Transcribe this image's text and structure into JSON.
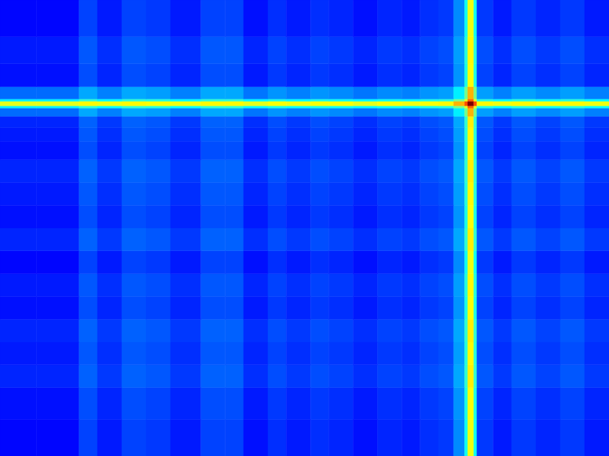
{
  "chart_data": {
    "type": "heatmap",
    "color": "jet",
    "tick_labels": false,
    "xlim": [
      0,
      100
    ],
    "ylim": [
      0,
      100
    ],
    "color_range": [
      0,
      1
    ],
    "x_edges": [
      0,
      6,
      13,
      16,
      20,
      24,
      28,
      33,
      37,
      40,
      44,
      47,
      51,
      54,
      58,
      62,
      66,
      69,
      72,
      74.5,
      76.3,
      76.8,
      77.8,
      78.3,
      81,
      84,
      88,
      92,
      96,
      100
    ],
    "y_edges": [
      0,
      8,
      15,
      20,
      25,
      30,
      35,
      40,
      45,
      50,
      55,
      60,
      65,
      69,
      72,
      74.5,
      76.3,
      76.8,
      77.8,
      78.3,
      81,
      86,
      92,
      100
    ],
    "cells": [
      [
        0.13,
        0.13,
        0.19,
        0.15,
        0.19,
        0.18,
        0.15,
        0.19,
        0.19,
        0.14,
        0.17,
        0.15,
        0.17,
        0.16,
        0.14,
        0.16,
        0.15,
        0.17,
        0.18,
        0.26,
        0.39,
        0.61,
        0.39,
        0.18,
        0.15,
        0.18,
        0.16,
        0.18,
        0.15
      ],
      [
        0.14,
        0.14,
        0.2,
        0.16,
        0.2,
        0.19,
        0.16,
        0.2,
        0.2,
        0.15,
        0.18,
        0.16,
        0.18,
        0.17,
        0.15,
        0.17,
        0.16,
        0.18,
        0.19,
        0.27,
        0.4,
        0.62,
        0.4,
        0.19,
        0.16,
        0.19,
        0.17,
        0.19,
        0.16
      ],
      [
        0.16,
        0.16,
        0.22,
        0.18,
        0.22,
        0.21,
        0.18,
        0.22,
        0.22,
        0.17,
        0.2,
        0.18,
        0.2,
        0.19,
        0.17,
        0.19,
        0.18,
        0.2,
        0.21,
        0.29,
        0.42,
        0.64,
        0.42,
        0.21,
        0.18,
        0.21,
        0.19,
        0.21,
        0.18
      ],
      [
        0.15,
        0.15,
        0.21,
        0.17,
        0.21,
        0.2,
        0.17,
        0.21,
        0.21,
        0.16,
        0.19,
        0.17,
        0.19,
        0.18,
        0.16,
        0.18,
        0.17,
        0.19,
        0.2,
        0.28,
        0.41,
        0.63,
        0.41,
        0.2,
        0.17,
        0.2,
        0.18,
        0.2,
        0.17
      ],
      [
        0.16,
        0.16,
        0.22,
        0.18,
        0.22,
        0.21,
        0.18,
        0.22,
        0.22,
        0.17,
        0.2,
        0.18,
        0.2,
        0.19,
        0.17,
        0.19,
        0.18,
        0.2,
        0.21,
        0.29,
        0.42,
        0.64,
        0.42,
        0.21,
        0.18,
        0.21,
        0.19,
        0.21,
        0.18
      ],
      [
        0.14,
        0.14,
        0.2,
        0.16,
        0.2,
        0.19,
        0.16,
        0.2,
        0.2,
        0.15,
        0.18,
        0.16,
        0.18,
        0.17,
        0.15,
        0.17,
        0.16,
        0.18,
        0.19,
        0.27,
        0.4,
        0.62,
        0.4,
        0.19,
        0.16,
        0.19,
        0.17,
        0.19,
        0.16
      ],
      [
        0.15,
        0.15,
        0.21,
        0.17,
        0.21,
        0.2,
        0.17,
        0.21,
        0.21,
        0.16,
        0.19,
        0.17,
        0.19,
        0.18,
        0.16,
        0.18,
        0.17,
        0.19,
        0.2,
        0.28,
        0.41,
        0.63,
        0.41,
        0.2,
        0.17,
        0.2,
        0.18,
        0.2,
        0.17
      ],
      [
        0.13,
        0.13,
        0.19,
        0.15,
        0.19,
        0.18,
        0.15,
        0.19,
        0.19,
        0.14,
        0.17,
        0.15,
        0.17,
        0.16,
        0.14,
        0.16,
        0.15,
        0.17,
        0.18,
        0.26,
        0.39,
        0.61,
        0.39,
        0.18,
        0.15,
        0.18,
        0.16,
        0.18,
        0.15
      ],
      [
        0.16,
        0.16,
        0.22,
        0.18,
        0.22,
        0.21,
        0.18,
        0.22,
        0.22,
        0.17,
        0.2,
        0.18,
        0.2,
        0.19,
        0.17,
        0.19,
        0.18,
        0.2,
        0.21,
        0.29,
        0.42,
        0.64,
        0.42,
        0.21,
        0.18,
        0.21,
        0.19,
        0.21,
        0.18
      ],
      [
        0.14,
        0.14,
        0.2,
        0.16,
        0.2,
        0.19,
        0.16,
        0.2,
        0.2,
        0.15,
        0.18,
        0.16,
        0.18,
        0.17,
        0.15,
        0.17,
        0.16,
        0.18,
        0.19,
        0.27,
        0.4,
        0.62,
        0.4,
        0.19,
        0.16,
        0.19,
        0.17,
        0.19,
        0.16
      ],
      [
        0.15,
        0.15,
        0.21,
        0.17,
        0.21,
        0.2,
        0.17,
        0.21,
        0.21,
        0.16,
        0.19,
        0.17,
        0.19,
        0.18,
        0.16,
        0.18,
        0.17,
        0.19,
        0.2,
        0.28,
        0.41,
        0.63,
        0.41,
        0.2,
        0.17,
        0.2,
        0.18,
        0.2,
        0.17
      ],
      [
        0.16,
        0.16,
        0.22,
        0.18,
        0.22,
        0.21,
        0.18,
        0.22,
        0.22,
        0.17,
        0.2,
        0.18,
        0.2,
        0.19,
        0.17,
        0.19,
        0.18,
        0.2,
        0.21,
        0.29,
        0.42,
        0.64,
        0.42,
        0.21,
        0.18,
        0.21,
        0.19,
        0.21,
        0.18
      ],
      [
        0.14,
        0.14,
        0.2,
        0.16,
        0.2,
        0.19,
        0.16,
        0.2,
        0.2,
        0.15,
        0.18,
        0.16,
        0.18,
        0.17,
        0.15,
        0.17,
        0.16,
        0.18,
        0.19,
        0.27,
        0.4,
        0.62,
        0.4,
        0.19,
        0.16,
        0.19,
        0.17,
        0.19,
        0.16
      ],
      [
        0.15,
        0.15,
        0.21,
        0.17,
        0.21,
        0.2,
        0.17,
        0.21,
        0.21,
        0.16,
        0.19,
        0.17,
        0.19,
        0.18,
        0.16,
        0.18,
        0.17,
        0.19,
        0.2,
        0.28,
        0.41,
        0.63,
        0.41,
        0.2,
        0.17,
        0.2,
        0.18,
        0.2,
        0.17
      ],
      [
        0.16,
        0.16,
        0.22,
        0.18,
        0.22,
        0.21,
        0.18,
        0.22,
        0.22,
        0.17,
        0.2,
        0.18,
        0.2,
        0.19,
        0.17,
        0.19,
        0.18,
        0.2,
        0.21,
        0.29,
        0.42,
        0.64,
        0.42,
        0.21,
        0.18,
        0.21,
        0.19,
        0.21,
        0.18
      ],
      [
        0.23,
        0.23,
        0.29,
        0.25,
        0.29,
        0.28,
        0.25,
        0.29,
        0.29,
        0.24,
        0.27,
        0.25,
        0.27,
        0.26,
        0.24,
        0.26,
        0.25,
        0.27,
        0.28,
        0.36,
        0.49,
        0.7,
        0.49,
        0.28,
        0.25,
        0.28,
        0.26,
        0.28,
        0.25
      ],
      [
        0.36,
        0.36,
        0.42,
        0.38,
        0.42,
        0.41,
        0.38,
        0.42,
        0.42,
        0.37,
        0.4,
        0.38,
        0.4,
        0.39,
        0.37,
        0.39,
        0.38,
        0.4,
        0.41,
        0.49,
        0.6,
        0.78,
        0.6,
        0.41,
        0.38,
        0.41,
        0.39,
        0.41,
        0.38
      ],
      [
        0.6,
        0.6,
        0.63,
        0.61,
        0.63,
        0.62,
        0.61,
        0.63,
        0.63,
        0.6,
        0.62,
        0.61,
        0.62,
        0.62,
        0.6,
        0.62,
        0.61,
        0.62,
        0.63,
        0.7,
        0.8,
        1.0,
        0.8,
        0.63,
        0.61,
        0.63,
        0.62,
        0.63,
        0.61
      ],
      [
        0.36,
        0.36,
        0.42,
        0.38,
        0.42,
        0.41,
        0.38,
        0.42,
        0.42,
        0.37,
        0.4,
        0.38,
        0.4,
        0.39,
        0.37,
        0.39,
        0.38,
        0.4,
        0.41,
        0.49,
        0.6,
        0.78,
        0.6,
        0.41,
        0.38,
        0.41,
        0.39,
        0.41,
        0.38
      ],
      [
        0.23,
        0.23,
        0.29,
        0.25,
        0.29,
        0.28,
        0.25,
        0.29,
        0.29,
        0.24,
        0.27,
        0.25,
        0.27,
        0.26,
        0.24,
        0.26,
        0.25,
        0.27,
        0.28,
        0.36,
        0.49,
        0.7,
        0.49,
        0.28,
        0.25,
        0.28,
        0.26,
        0.28,
        0.25
      ],
      [
        0.14,
        0.14,
        0.2,
        0.16,
        0.2,
        0.19,
        0.16,
        0.2,
        0.2,
        0.15,
        0.18,
        0.16,
        0.18,
        0.17,
        0.15,
        0.17,
        0.16,
        0.18,
        0.19,
        0.27,
        0.4,
        0.62,
        0.4,
        0.19,
        0.16,
        0.19,
        0.17,
        0.19,
        0.16
      ],
      [
        0.15,
        0.15,
        0.21,
        0.17,
        0.21,
        0.2,
        0.17,
        0.21,
        0.21,
        0.16,
        0.19,
        0.17,
        0.19,
        0.18,
        0.16,
        0.18,
        0.17,
        0.19,
        0.2,
        0.28,
        0.41,
        0.63,
        0.41,
        0.2,
        0.17,
        0.2,
        0.18,
        0.2,
        0.17
      ],
      [
        0.13,
        0.13,
        0.19,
        0.15,
        0.19,
        0.18,
        0.15,
        0.19,
        0.19,
        0.14,
        0.17,
        0.15,
        0.17,
        0.16,
        0.14,
        0.16,
        0.15,
        0.17,
        0.18,
        0.26,
        0.39,
        0.61,
        0.39,
        0.18,
        0.15,
        0.18,
        0.16,
        0.18,
        0.15
      ]
    ]
  }
}
